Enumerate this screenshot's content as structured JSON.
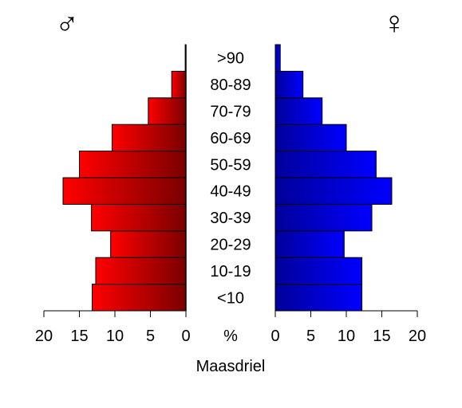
{
  "chart_data": {
    "type": "bar",
    "orientation": "horizontal-population-pyramid",
    "categories": [
      "<10",
      "10-19",
      "20-29",
      "30-39",
      "40-49",
      "50-59",
      "60-69",
      "70-79",
      "80-89",
      ">90"
    ],
    "series": [
      {
        "name": "♂",
        "side": "left",
        "color_start": "#ff0000",
        "color_end": "#7a0000",
        "values": [
          13.2,
          12.7,
          10.6,
          13.3,
          17.3,
          15.0,
          10.4,
          5.3,
          2.0,
          0.1
        ]
      },
      {
        "name": "♀",
        "side": "right",
        "color_start": "#00009a",
        "color_end": "#0000ff",
        "values": [
          12.2,
          12.2,
          9.7,
          13.6,
          16.4,
          14.2,
          10.0,
          6.6,
          3.9,
          0.7
        ]
      }
    ],
    "left_ticks": [
      "20",
      "15",
      "10",
      "5",
      "0"
    ],
    "right_ticks": [
      "0",
      "5",
      "10",
      "15",
      "20"
    ],
    "center_tick_label": "%",
    "xlim": [
      0,
      20
    ],
    "xlabel": "Maasdriel",
    "male_symbol": "♂",
    "female_symbol": "♀",
    "grid": false
  }
}
